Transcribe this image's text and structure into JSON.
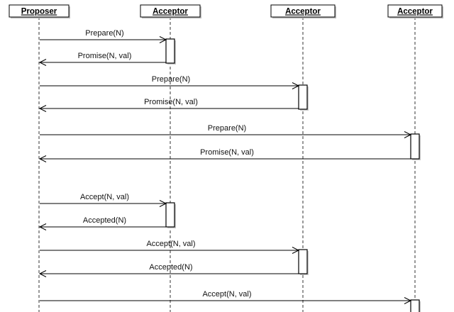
{
  "participants": [
    {
      "id": "p0",
      "label": "Proposer"
    },
    {
      "id": "p1",
      "label": "Acceptor"
    },
    {
      "id": "p2",
      "label": "Acceptor"
    },
    {
      "id": "p3",
      "label": "Acceptor"
    }
  ],
  "messages": [
    {
      "label": "Prepare(N)",
      "from": 0,
      "to": 1
    },
    {
      "label": "Promise(N, val)",
      "from": 1,
      "to": 0
    },
    {
      "label": "Prepare(N)",
      "from": 0,
      "to": 2
    },
    {
      "label": "Promise(N, val)",
      "from": 2,
      "to": 0
    },
    {
      "label": "Prepare(N)",
      "from": 0,
      "to": 3
    },
    {
      "label": "Promise(N, val)",
      "from": 3,
      "to": 0
    },
    {
      "label": "Accept(N, val)",
      "from": 0,
      "to": 1
    },
    {
      "label": "Accepted(N)",
      "from": 1,
      "to": 0
    },
    {
      "label": "Accept(N, val)",
      "from": 0,
      "to": 2
    },
    {
      "label": "Accepted(N)",
      "from": 2,
      "to": 0
    },
    {
      "label": "Accept(N, val)",
      "from": 0,
      "to": 3
    }
  ]
}
